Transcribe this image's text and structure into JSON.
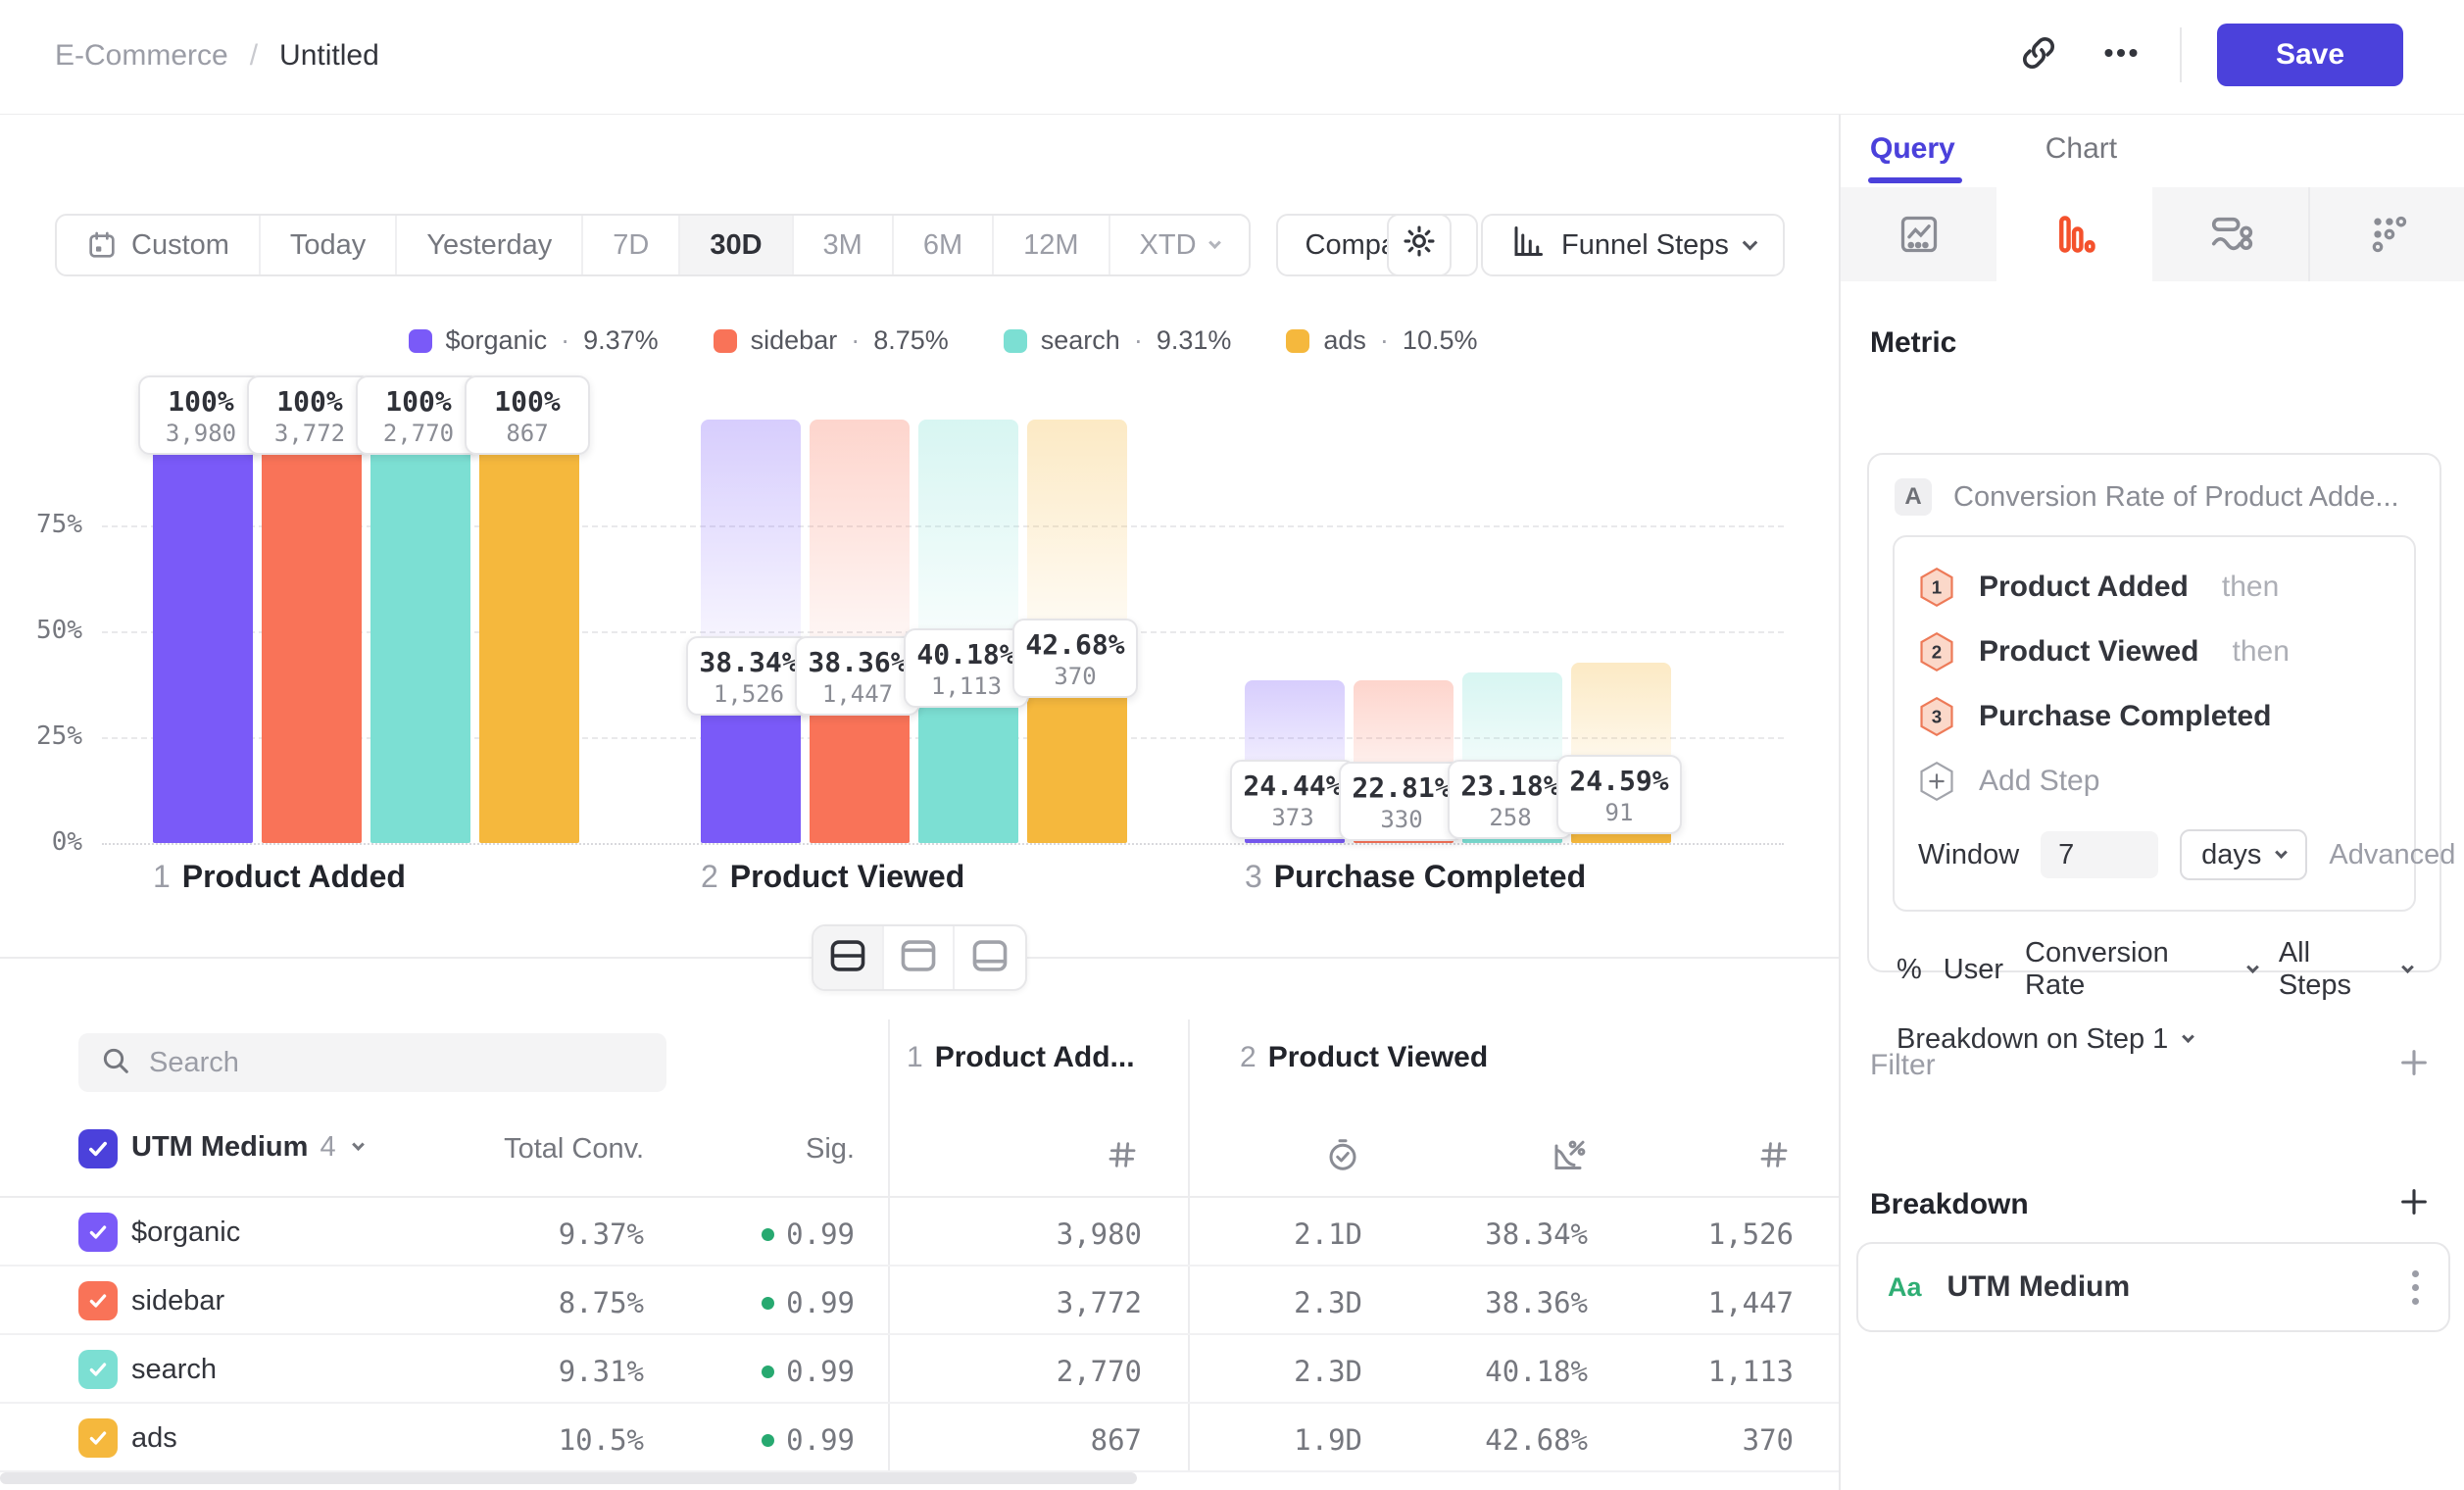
{
  "colors": {
    "accent": "#4B41DB",
    "funnel_icon_orange": "#F4512C",
    "green": "#27A970",
    "series": {
      "organic": "#7A5AF8",
      "sidebar": "#F97358",
      "search": "#7CDFD3",
      "ads": "#F5B83D"
    }
  },
  "header": {
    "breadcrumb": {
      "project": "E-Commerce",
      "separator": "/",
      "title": "Untitled"
    },
    "save_label": "Save"
  },
  "toolbar": {
    "date_ranges": [
      "Custom",
      "Today",
      "Yesterday",
      "7D",
      "30D",
      "3M",
      "6M",
      "12M",
      "XTD"
    ],
    "selected_range": "30D",
    "compare_label": "Compare",
    "chart_type_label": "Funnel Steps"
  },
  "legend": {
    "separator": "·",
    "items": [
      {
        "label": "$organic",
        "value": "9.37%",
        "color": "#7A5AF8"
      },
      {
        "label": "sidebar",
        "value": "8.75%",
        "color": "#F97358"
      },
      {
        "label": "search",
        "value": "9.31%",
        "color": "#7CDFD3"
      },
      {
        "label": "ads",
        "value": "10.5%",
        "color": "#F5B83D"
      }
    ]
  },
  "chart_data": {
    "type": "bar",
    "title": "",
    "categories": [
      "Product Added",
      "Product Viewed",
      "Purchase Completed"
    ],
    "category_numbers": [
      "1",
      "2",
      "3"
    ],
    "yticks": [
      "75%",
      "50%",
      "25%",
      "0%"
    ],
    "ylim": [
      0,
      100
    ],
    "grid": true,
    "legend_position": "top",
    "series": [
      {
        "name": "$organic",
        "color": "#7A5AF8",
        "counts": [
          3980,
          1526,
          373
        ],
        "counts_display": [
          "3,980",
          "1,526",
          "373"
        ],
        "step_conversion_pct": [
          100,
          38.34,
          24.44
        ],
        "conversion_display": [
          "100%",
          "38.34%",
          "24.44%"
        ],
        "bar_heights_pct": [
          100,
          38.34,
          9.37
        ],
        "overall_conversion_pct": 9.37
      },
      {
        "name": "sidebar",
        "color": "#F97358",
        "counts": [
          3772,
          1447,
          330
        ],
        "counts_display": [
          "3,772",
          "1,447",
          "330"
        ],
        "step_conversion_pct": [
          100,
          38.36,
          22.81
        ],
        "conversion_display": [
          "100%",
          "38.36%",
          "22.81%"
        ],
        "bar_heights_pct": [
          100,
          38.36,
          8.75
        ],
        "overall_conversion_pct": 8.75
      },
      {
        "name": "search",
        "color": "#7CDFD3",
        "counts": [
          2770,
          1113,
          258
        ],
        "counts_display": [
          "2,770",
          "1,113",
          "258"
        ],
        "step_conversion_pct": [
          100,
          40.18,
          23.18
        ],
        "conversion_display": [
          "100%",
          "40.18%",
          "23.18%"
        ],
        "bar_heights_pct": [
          100,
          40.18,
          9.31
        ],
        "overall_conversion_pct": 9.31
      },
      {
        "name": "ads",
        "color": "#F5B83D",
        "counts": [
          867,
          370,
          91
        ],
        "counts_display": [
          "867",
          "370",
          "91"
        ],
        "step_conversion_pct": [
          100,
          42.68,
          24.59
        ],
        "conversion_display": [
          "100%",
          "42.68%",
          "24.59%"
        ],
        "bar_heights_pct": [
          100,
          42.68,
          10.5
        ],
        "overall_conversion_pct": 10.5
      }
    ]
  },
  "view_switcher": {
    "options": [
      "split-view",
      "chart-only",
      "table-only"
    ],
    "active": "split-view"
  },
  "table": {
    "search_placeholder": "Search",
    "group_column": {
      "label": "UTM Medium",
      "count": "4"
    },
    "headers": {
      "total_conv": "Total Conv.",
      "sig": "Sig."
    },
    "step_columns": [
      {
        "num": "1",
        "label": "Product Add...",
        "metric_icons": [
          "count"
        ]
      },
      {
        "num": "2",
        "label": "Product Viewed",
        "metric_icons": [
          "time-to-convert",
          "conversion-rate",
          "count"
        ]
      }
    ],
    "rows": [
      {
        "label": "$organic",
        "color": "#7A5AF8",
        "total_conv": "9.37%",
        "sig": "0.99",
        "step1_count": "3,980",
        "step2_time": "2.1D",
        "step2_pct": "38.34%",
        "step2_count": "1,526"
      },
      {
        "label": "sidebar",
        "color": "#F97358",
        "total_conv": "8.75%",
        "sig": "0.99",
        "step1_count": "3,772",
        "step2_time": "2.3D",
        "step2_pct": "38.36%",
        "step2_count": "1,447"
      },
      {
        "label": "search",
        "color": "#7CDFD3",
        "total_conv": "9.31%",
        "sig": "0.99",
        "step1_count": "2,770",
        "step2_time": "2.3D",
        "step2_pct": "40.18%",
        "step2_count": "1,113"
      },
      {
        "label": "ads",
        "color": "#F5B83D",
        "total_conv": "10.5%",
        "sig": "0.99",
        "step1_count": "867",
        "step2_time": "1.9D",
        "step2_pct": "42.68%",
        "step2_count": "370"
      }
    ]
  },
  "panel": {
    "tabs": [
      {
        "label": "Query"
      },
      {
        "label": "Chart"
      }
    ],
    "active_tab": "Query",
    "metric_heading": "Metric",
    "metric": {
      "badge": "A",
      "title": "Conversion Rate of Product Adde...",
      "steps": [
        {
          "num": "1",
          "name": "Product Added",
          "suffix": "then"
        },
        {
          "num": "2",
          "name": "Product Viewed",
          "suffix": "then"
        },
        {
          "num": "3",
          "name": "Purchase Completed",
          "suffix": ""
        }
      ],
      "add_step_label": "Add Step",
      "window": {
        "label": "Window",
        "value": "7",
        "unit": "days",
        "advanced_label": "Advanced"
      },
      "measured_as": {
        "prefix": "%",
        "entity": "User",
        "metric": "Conversion Rate",
        "scope": "All Steps"
      },
      "breakdown_on": "Breakdown on Step 1"
    },
    "filter": {
      "label": "Filter"
    },
    "breakdown": {
      "label": "Breakdown",
      "items": [
        {
          "type_badge": "Aa",
          "name": "UTM Medium"
        }
      ]
    }
  }
}
